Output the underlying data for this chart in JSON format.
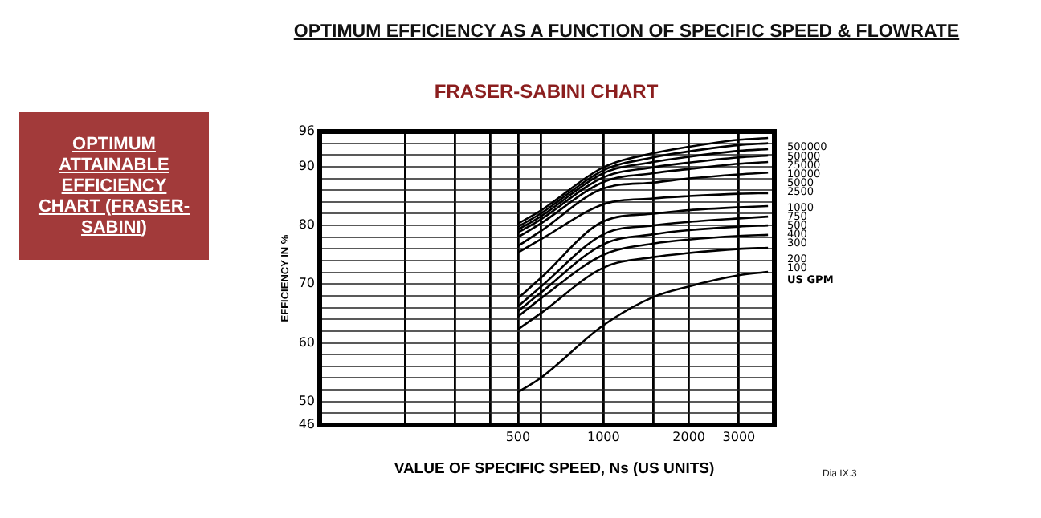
{
  "chart_data": {
    "type": "line",
    "title": "OPTIMUM EFFICIENCY AS A FUNCTION OF SPECIFIC SPEED & FLOWRATE",
    "subtitle": "FRASER-SABINI CHART",
    "xlabel": "VALUE OF SPECIFIC SPEED, Ns (US UNITS)",
    "ylabel": "EFFICIENCY IN %",
    "legend_title": "US GPM",
    "annotations": [
      "OPTIMUM ATTAINABLE EFFICIENCY CHART (FRASER-SABINI)",
      "Dia IX.3"
    ],
    "x": [
      500,
      600,
      1000,
      1500,
      2000,
      3000,
      3800
    ],
    "series": [
      {
        "name": "500000",
        "color": "#000000",
        "values": [
          80.3,
          82.5,
          89.9,
          92.3,
          93.4,
          94.6,
          94.9
        ]
      },
      {
        "name": "50000",
        "color": "#000000",
        "values": [
          79.8,
          82,
          89.4,
          91.6,
          92.6,
          93.7,
          94.0
        ]
      },
      {
        "name": "25000",
        "color": "#000000",
        "values": [
          79.3,
          81.5,
          88.9,
          90.8,
          91.7,
          92.7,
          93.0
        ]
      },
      {
        "name": "10000",
        "color": "#000000",
        "values": [
          78.8,
          81,
          88.2,
          89.9,
          90.7,
          91.6,
          91.9
        ]
      },
      {
        "name": "5000",
        "color": "#000000",
        "values": [
          78.0,
          80.3,
          87.4,
          88.9,
          89.6,
          90.5,
          90.8
        ]
      },
      {
        "name": "2500",
        "color": "#000000",
        "values": [
          76.5,
          79,
          86.3,
          87.3,
          88,
          88.7,
          89.0
        ]
      },
      {
        "name": "1000",
        "color": "#000000",
        "values": [
          75.4,
          77.6,
          83.6,
          84.6,
          85.0,
          85.4,
          85.5
        ]
      },
      {
        "name": "750",
        "color": "#000000",
        "values": [
          67.6,
          71,
          80.7,
          82,
          82.6,
          83.1,
          83.3
        ]
      },
      {
        "name": "500",
        "color": "#000000",
        "values": [
          66.2,
          69.5,
          78.5,
          80,
          80.6,
          81.2,
          81.5
        ]
      },
      {
        "name": "400",
        "color": "#000000",
        "values": [
          65.4,
          68.5,
          76.8,
          78.5,
          79.2,
          79.8,
          80.0
        ]
      },
      {
        "name": "300",
        "color": "#000000",
        "values": [
          64.5,
          67.5,
          75,
          76.9,
          77.6,
          78.2,
          78.4
        ]
      },
      {
        "name": "200",
        "color": "#000000",
        "values": [
          62.3,
          65,
          72.8,
          74.6,
          75.3,
          76,
          76.2
        ]
      },
      {
        "name": "100",
        "color": "#000000",
        "values": [
          51.6,
          54,
          63,
          67.8,
          69.6,
          71.5,
          72.1
        ]
      }
    ],
    "log": "x",
    "xlim": [
      100,
      4000
    ],
    "xticks": [
      {
        "value": 200,
        "label": null
      },
      {
        "value": 300,
        "label": null
      },
      {
        "value": 400,
        "label": null
      },
      500,
      {
        "value": 600,
        "label": null
      },
      1000,
      {
        "value": 1500,
        "label": null
      },
      2000,
      3000
    ],
    "ylim": [
      46,
      96
    ],
    "yticks": [
      46,
      {
        "value": 48,
        "label": null
      },
      50,
      {
        "value": 52,
        "label": null
      },
      {
        "value": 54,
        "label": null
      },
      {
        "value": 56,
        "label": null
      },
      {
        "value": 58,
        "label": null
      },
      60,
      {
        "value": 62,
        "label": null
      },
      {
        "value": 64,
        "label": null
      },
      {
        "value": 66,
        "label": null
      },
      {
        "value": 68,
        "label": null
      },
      70,
      {
        "value": 72,
        "label": null
      },
      {
        "value": 74,
        "label": null
      },
      {
        "value": 76,
        "label": null
      },
      {
        "value": 78,
        "label": null
      },
      80,
      {
        "value": 82,
        "label": null
      },
      {
        "value": 84,
        "label": null
      },
      {
        "value": 86,
        "label": null
      },
      {
        "value": 88,
        "label": null
      },
      90,
      {
        "value": 92,
        "label": null
      },
      {
        "value": 94,
        "label": null
      },
      96
    ],
    "grid": true,
    "legend": "right",
    "marker": "none",
    "line_style": "solid"
  }
}
